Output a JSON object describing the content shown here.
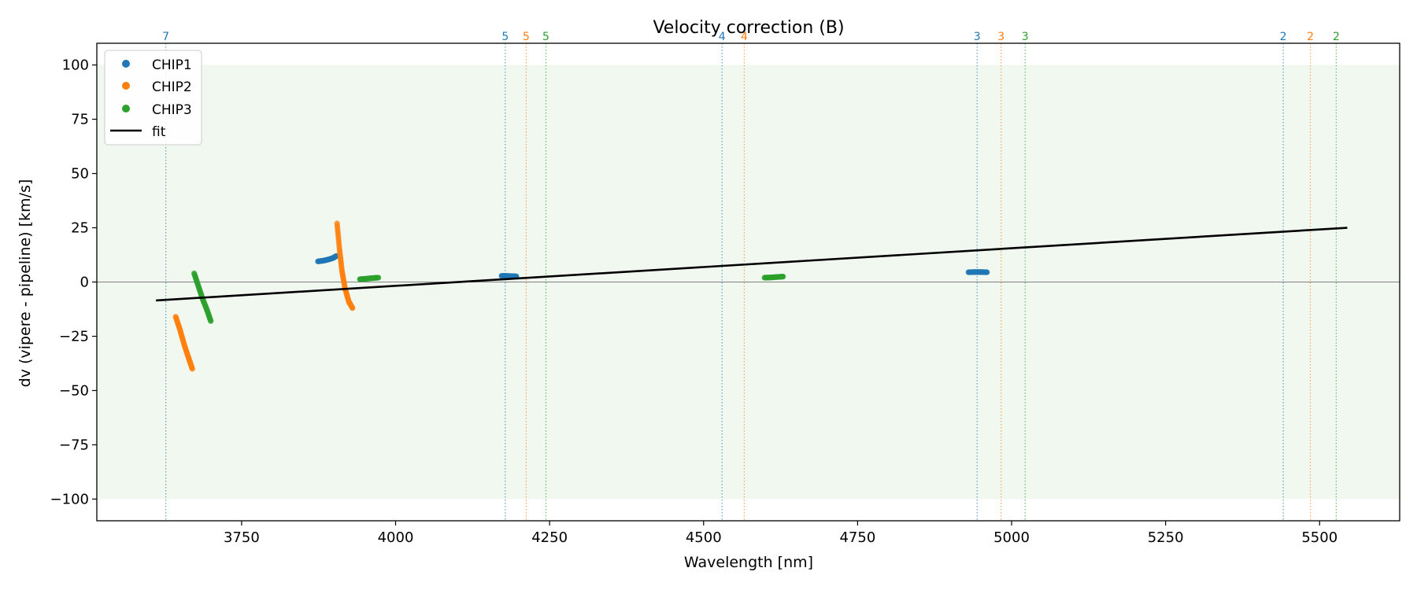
{
  "chart_data": {
    "type": "scatter",
    "title": "Velocity correction (B)",
    "xlabel": "Wavelength [nm]",
    "ylabel": "dv (vipere - pipeline) [km/s]",
    "xlim": [
      3515,
      5630
    ],
    "ylim": [
      -110,
      110
    ],
    "xticks": [
      3750,
      4000,
      4250,
      4500,
      4750,
      5000,
      5250,
      5500
    ],
    "yticks": [
      -100,
      -75,
      -50,
      -25,
      0,
      25,
      50,
      75,
      100
    ],
    "xtick_labels": [
      "3750",
      "4000",
      "4250",
      "4500",
      "4750",
      "5000",
      "5250",
      "5500"
    ],
    "ytick_labels": [
      "−100",
      "−75",
      "−50",
      "−25",
      "0",
      "25",
      "50",
      "75",
      "100"
    ],
    "band": {
      "y_range": [
        -100,
        100
      ],
      "color": "#2ca02c"
    },
    "zero_line": 0,
    "legend": {
      "position": "top-left",
      "entries": [
        "CHIP1",
        "CHIP2",
        "CHIP3",
        "fit"
      ]
    },
    "colors": {
      "CHIP1": "#1f77b4",
      "CHIP2": "#ff7f0e",
      "CHIP3": "#2ca02c",
      "fit": "#000000"
    },
    "order_markers": [
      {
        "x": 3627,
        "label": "7",
        "chip": "CHIP1"
      },
      {
        "x": 4178,
        "label": "5",
        "chip": "CHIP1"
      },
      {
        "x": 4212,
        "label": "5",
        "chip": "CHIP2"
      },
      {
        "x": 4244,
        "label": "5",
        "chip": "CHIP3"
      },
      {
        "x": 4530,
        "label": "4",
        "chip": "CHIP1"
      },
      {
        "x": 4566,
        "label": "4",
        "chip": "CHIP2"
      },
      {
        "x": 4944,
        "label": "3",
        "chip": "CHIP1"
      },
      {
        "x": 4983,
        "label": "3",
        "chip": "CHIP2"
      },
      {
        "x": 5022,
        "label": "3",
        "chip": "CHIP3"
      },
      {
        "x": 5441,
        "label": "2",
        "chip": "CHIP1"
      },
      {
        "x": 5485,
        "label": "2",
        "chip": "CHIP2"
      },
      {
        "x": 5527,
        "label": "2",
        "chip": "CHIP3"
      }
    ],
    "series": [
      {
        "name": "CHIP1",
        "segments": [
          {
            "x": [
              3874,
              3882,
              3890,
              3898,
              3904
            ],
            "y": [
              9.5,
              9.8,
              10.3,
              11.0,
              12.0
            ]
          },
          {
            "x": [
              4172,
              4180,
              4188,
              4196
            ],
            "y": [
              2.8,
              2.8,
              2.7,
              2.6
            ]
          },
          {
            "x": [
              4930,
              4940,
              4950,
              4960
            ],
            "y": [
              4.5,
              4.6,
              4.6,
              4.5
            ]
          }
        ]
      },
      {
        "name": "CHIP2",
        "segments": [
          {
            "x": [
              3643,
              3650,
              3657,
              3664,
              3670
            ],
            "y": [
              -16,
              -22,
              -29,
              -35,
              -40
            ]
          },
          {
            "x": [
              3905,
              3909,
              3913,
              3918,
              3924,
              3930
            ],
            "y": [
              27,
              15,
              5,
              -3,
              -9,
              -12
            ]
          }
        ]
      },
      {
        "name": "CHIP3",
        "segments": [
          {
            "x": [
              3673,
              3680,
              3687,
              3694,
              3700
            ],
            "y": [
              4,
              -2,
              -8,
              -13,
              -18
            ]
          },
          {
            "x": [
              3942,
              3952,
              3962,
              3972
            ],
            "y": [
              1.3,
              1.5,
              1.8,
              2.0
            ]
          },
          {
            "x": [
              4599,
              4609,
              4619,
              4629
            ],
            "y": [
              2.0,
              2.1,
              2.3,
              2.5
            ]
          }
        ]
      },
      {
        "name": "fit",
        "x": [
          3611,
          5545
        ],
        "y": [
          -8.5,
          25.0
        ]
      }
    ]
  }
}
